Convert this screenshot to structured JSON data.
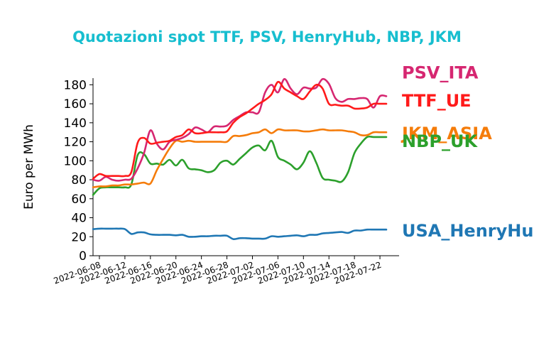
{
  "chart_data": {
    "type": "line",
    "title": "Quotazioni spot TTF, PSV, HenryHub, NBP, JKM",
    "xlabel": "",
    "ylabel": "Euro per MWh",
    "x_range": [
      "2022-06-07",
      "2022-07-25"
    ],
    "ylim": [
      0,
      187
    ],
    "yticks": [
      0,
      20,
      40,
      60,
      80,
      100,
      120,
      140,
      160,
      180
    ],
    "xticks": [
      "2022-06-08",
      "2022-06-12",
      "2022-06-16",
      "2022-06-20",
      "2022-06-24",
      "2022-06-28",
      "2022-07-02",
      "2022-07-06",
      "2022-07-10",
      "2022-07-14",
      "2022-07-18",
      "2022-07-22"
    ],
    "grid": false,
    "legend": "labels at right end of each line",
    "series": [
      {
        "name": "PSV_ITA",
        "color": "#d62771",
        "points": [
          [
            "2022-06-07",
            80
          ],
          [
            "2022-06-08",
            79
          ],
          [
            "2022-06-09",
            83
          ],
          [
            "2022-06-10",
            80
          ],
          [
            "2022-06-11",
            79
          ],
          [
            "2022-06-12",
            80
          ],
          [
            "2022-06-13",
            81
          ],
          [
            "2022-06-14",
            92
          ],
          [
            "2022-06-15",
            108
          ],
          [
            "2022-06-16",
            132
          ],
          [
            "2022-06-17",
            118
          ],
          [
            "2022-06-18",
            112
          ],
          [
            "2022-06-19",
            120
          ],
          [
            "2022-06-20",
            122
          ],
          [
            "2022-06-21",
            124
          ],
          [
            "2022-06-22",
            128
          ],
          [
            "2022-06-23",
            135
          ],
          [
            "2022-06-24",
            133
          ],
          [
            "2022-06-25",
            130
          ],
          [
            "2022-06-26",
            136
          ],
          [
            "2022-06-27",
            136
          ],
          [
            "2022-06-28",
            137
          ],
          [
            "2022-06-29",
            143
          ],
          [
            "2022-06-30",
            147
          ],
          [
            "2022-07-01",
            151
          ],
          [
            "2022-07-02",
            151
          ],
          [
            "2022-07-03",
            151
          ],
          [
            "2022-07-04",
            172
          ],
          [
            "2022-07-05",
            180
          ],
          [
            "2022-07-06",
            172
          ],
          [
            "2022-07-07",
            186
          ],
          [
            "2022-07-08",
            176
          ],
          [
            "2022-07-09",
            170
          ],
          [
            "2022-07-10",
            177
          ],
          [
            "2022-07-11",
            176
          ],
          [
            "2022-07-12",
            177
          ],
          [
            "2022-07-13",
            186
          ],
          [
            "2022-07-14",
            181
          ],
          [
            "2022-07-15",
            166
          ],
          [
            "2022-07-16",
            162
          ],
          [
            "2022-07-17",
            165
          ],
          [
            "2022-07-18",
            165
          ],
          [
            "2022-07-19",
            166
          ],
          [
            "2022-07-20",
            165
          ],
          [
            "2022-07-21",
            156
          ],
          [
            "2022-07-22",
            168
          ],
          [
            "2022-07-23",
            168
          ]
        ]
      },
      {
        "name": "TTF_UE",
        "color": "#ff1a1a",
        "points": [
          [
            "2022-06-07",
            81
          ],
          [
            "2022-06-08",
            86
          ],
          [
            "2022-06-09",
            84
          ],
          [
            "2022-06-10",
            84
          ],
          [
            "2022-06-11",
            84
          ],
          [
            "2022-06-12",
            84
          ],
          [
            "2022-06-13",
            88
          ],
          [
            "2022-06-14",
            119
          ],
          [
            "2022-06-15",
            124
          ],
          [
            "2022-06-16",
            118
          ],
          [
            "2022-06-17",
            119
          ],
          [
            "2022-06-18",
            120
          ],
          [
            "2022-06-19",
            121
          ],
          [
            "2022-06-20",
            125
          ],
          [
            "2022-06-21",
            127
          ],
          [
            "2022-06-22",
            133
          ],
          [
            "2022-06-23",
            129
          ],
          [
            "2022-06-24",
            129
          ],
          [
            "2022-06-25",
            130
          ],
          [
            "2022-06-26",
            130
          ],
          [
            "2022-06-27",
            130
          ],
          [
            "2022-06-28",
            131
          ],
          [
            "2022-06-29",
            140
          ],
          [
            "2022-06-30",
            146
          ],
          [
            "2022-07-01",
            150
          ],
          [
            "2022-07-02",
            155
          ],
          [
            "2022-07-03",
            160
          ],
          [
            "2022-07-04",
            164
          ],
          [
            "2022-07-05",
            170
          ],
          [
            "2022-07-06",
            183
          ],
          [
            "2022-07-07",
            176
          ],
          [
            "2022-07-08",
            172
          ],
          [
            "2022-07-09",
            168
          ],
          [
            "2022-07-10",
            165
          ],
          [
            "2022-07-11",
            173
          ],
          [
            "2022-07-12",
            180
          ],
          [
            "2022-07-13",
            176
          ],
          [
            "2022-07-14",
            160
          ],
          [
            "2022-07-15",
            159
          ],
          [
            "2022-07-16",
            158
          ],
          [
            "2022-07-17",
            158
          ],
          [
            "2022-07-18",
            155
          ],
          [
            "2022-07-19",
            155
          ],
          [
            "2022-07-20",
            156
          ],
          [
            "2022-07-21",
            160
          ],
          [
            "2022-07-22",
            160
          ],
          [
            "2022-07-23",
            160
          ]
        ]
      },
      {
        "name": "JKM_ASIA",
        "color": "#f57c0a",
        "points": [
          [
            "2022-06-07",
            72
          ],
          [
            "2022-06-08",
            73
          ],
          [
            "2022-06-09",
            73
          ],
          [
            "2022-06-10",
            74
          ],
          [
            "2022-06-11",
            74
          ],
          [
            "2022-06-12",
            75
          ],
          [
            "2022-06-13",
            75
          ],
          [
            "2022-06-14",
            76
          ],
          [
            "2022-06-15",
            77
          ],
          [
            "2022-06-16",
            76
          ],
          [
            "2022-06-17",
            90
          ],
          [
            "2022-06-18",
            102
          ],
          [
            "2022-06-19",
            113
          ],
          [
            "2022-06-20",
            121
          ],
          [
            "2022-06-21",
            120
          ],
          [
            "2022-06-22",
            121
          ],
          [
            "2022-06-23",
            120
          ],
          [
            "2022-06-24",
            120
          ],
          [
            "2022-06-25",
            120
          ],
          [
            "2022-06-26",
            120
          ],
          [
            "2022-06-27",
            120
          ],
          [
            "2022-06-28",
            120
          ],
          [
            "2022-06-29",
            126
          ],
          [
            "2022-06-30",
            126
          ],
          [
            "2022-07-01",
            127
          ],
          [
            "2022-07-02",
            129
          ],
          [
            "2022-07-03",
            130
          ],
          [
            "2022-07-04",
            133
          ],
          [
            "2022-07-05",
            129
          ],
          [
            "2022-07-06",
            133
          ],
          [
            "2022-07-07",
            132
          ],
          [
            "2022-07-08",
            132
          ],
          [
            "2022-07-09",
            132
          ],
          [
            "2022-07-10",
            131
          ],
          [
            "2022-07-11",
            131
          ],
          [
            "2022-07-12",
            132
          ],
          [
            "2022-07-13",
            133
          ],
          [
            "2022-07-14",
            132
          ],
          [
            "2022-07-15",
            132
          ],
          [
            "2022-07-16",
            132
          ],
          [
            "2022-07-17",
            131
          ],
          [
            "2022-07-18",
            130
          ],
          [
            "2022-07-19",
            127
          ],
          [
            "2022-07-20",
            127
          ],
          [
            "2022-07-21",
            130
          ],
          [
            "2022-07-22",
            130
          ],
          [
            "2022-07-23",
            130
          ]
        ]
      },
      {
        "name": "NBP_UK",
        "color": "#2ca02c",
        "points": [
          [
            "2022-06-07",
            64
          ],
          [
            "2022-06-08",
            71
          ],
          [
            "2022-06-09",
            72
          ],
          [
            "2022-06-10",
            72
          ],
          [
            "2022-06-11",
            72
          ],
          [
            "2022-06-12",
            72
          ],
          [
            "2022-06-13",
            75
          ],
          [
            "2022-06-14",
            106
          ],
          [
            "2022-06-15",
            107
          ],
          [
            "2022-06-16",
            97
          ],
          [
            "2022-06-17",
            97
          ],
          [
            "2022-06-18",
            96
          ],
          [
            "2022-06-19",
            101
          ],
          [
            "2022-06-20",
            95
          ],
          [
            "2022-06-21",
            101
          ],
          [
            "2022-06-22",
            92
          ],
          [
            "2022-06-23",
            91
          ],
          [
            "2022-06-24",
            90
          ],
          [
            "2022-06-25",
            88
          ],
          [
            "2022-06-26",
            90
          ],
          [
            "2022-06-27",
            98
          ],
          [
            "2022-06-28",
            100
          ],
          [
            "2022-06-29",
            96
          ],
          [
            "2022-06-30",
            102
          ],
          [
            "2022-07-01",
            108
          ],
          [
            "2022-07-02",
            114
          ],
          [
            "2022-07-03",
            116
          ],
          [
            "2022-07-04",
            111
          ],
          [
            "2022-07-05",
            121
          ],
          [
            "2022-07-06",
            104
          ],
          [
            "2022-07-07",
            100
          ],
          [
            "2022-07-08",
            96
          ],
          [
            "2022-07-09",
            91
          ],
          [
            "2022-07-10",
            98
          ],
          [
            "2022-07-11",
            110
          ],
          [
            "2022-07-12",
            98
          ],
          [
            "2022-07-13",
            82
          ],
          [
            "2022-07-14",
            80
          ],
          [
            "2022-07-15",
            79
          ],
          [
            "2022-07-16",
            78
          ],
          [
            "2022-07-17",
            88
          ],
          [
            "2022-07-18",
            108
          ],
          [
            "2022-07-19",
            118
          ],
          [
            "2022-07-20",
            125
          ],
          [
            "2022-07-21",
            125
          ],
          [
            "2022-07-22",
            125
          ],
          [
            "2022-07-23",
            125
          ]
        ]
      },
      {
        "name": "USA_HenryHub",
        "color": "#1f77b4",
        "points": [
          [
            "2022-06-07",
            28
          ],
          [
            "2022-06-08",
            28.5
          ],
          [
            "2022-06-09",
            28.5
          ],
          [
            "2022-06-10",
            28.5
          ],
          [
            "2022-06-11",
            28.5
          ],
          [
            "2022-06-12",
            28
          ],
          [
            "2022-06-13",
            23
          ],
          [
            "2022-06-14",
            24.5
          ],
          [
            "2022-06-15",
            24.5
          ],
          [
            "2022-06-16",
            22.5
          ],
          [
            "2022-06-17",
            22
          ],
          [
            "2022-06-18",
            22
          ],
          [
            "2022-06-19",
            22
          ],
          [
            "2022-06-20",
            21.5
          ],
          [
            "2022-06-21",
            22
          ],
          [
            "2022-06-22",
            20
          ],
          [
            "2022-06-23",
            20
          ],
          [
            "2022-06-24",
            20.5
          ],
          [
            "2022-06-25",
            20.5
          ],
          [
            "2022-06-26",
            21
          ],
          [
            "2022-06-27",
            21
          ],
          [
            "2022-06-28",
            21
          ],
          [
            "2022-06-29",
            17.5
          ],
          [
            "2022-06-30",
            18.5
          ],
          [
            "2022-07-01",
            18.5
          ],
          [
            "2022-07-02",
            18
          ],
          [
            "2022-07-03",
            18
          ],
          [
            "2022-07-04",
            18
          ],
          [
            "2022-07-05",
            20.5
          ],
          [
            "2022-07-06",
            20
          ],
          [
            "2022-07-07",
            20.5
          ],
          [
            "2022-07-08",
            21
          ],
          [
            "2022-07-09",
            21.5
          ],
          [
            "2022-07-10",
            20.5
          ],
          [
            "2022-07-11",
            22
          ],
          [
            "2022-07-12",
            22
          ],
          [
            "2022-07-13",
            23.5
          ],
          [
            "2022-07-14",
            24
          ],
          [
            "2022-07-15",
            24.5
          ],
          [
            "2022-07-16",
            25
          ],
          [
            "2022-07-17",
            24
          ],
          [
            "2022-07-18",
            26.5
          ],
          [
            "2022-07-19",
            26.5
          ],
          [
            "2022-07-20",
            27.5
          ],
          [
            "2022-07-21",
            27.5
          ],
          [
            "2022-07-22",
            27.5
          ],
          [
            "2022-07-23",
            27.5
          ]
        ]
      }
    ]
  }
}
